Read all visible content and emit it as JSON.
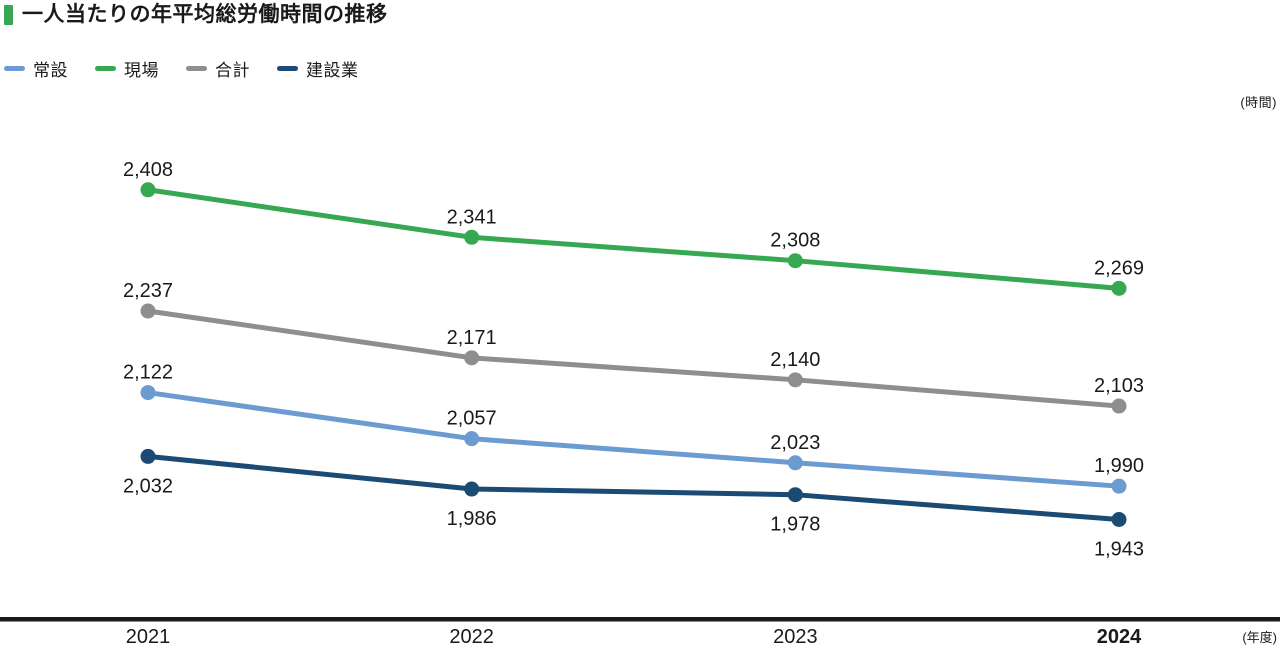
{
  "title": "一人当たりの年平均総労働時間の推移",
  "unit_label": "(時間)",
  "x_axis_unit_label": "(年度)",
  "colors": {
    "accent": "#36a852",
    "axis": "#1a1a1a",
    "text": "#1a1a1a"
  },
  "chart_data": {
    "type": "line",
    "title": "一人当たりの年平均総労働時間の推移",
    "x": [
      "2021",
      "2022",
      "2023",
      "2024"
    ],
    "xlabel": "(年度)",
    "ylabel": "(時間)",
    "ylim": [
      1900,
      2450
    ],
    "grid": false,
    "legend_position": "top-left",
    "value_format": "thousands-comma",
    "emphasized_x_label": "2024",
    "series": [
      {
        "name": "常設",
        "color": "#6c9bd2",
        "values": [
          2122,
          2057,
          2023,
          1990
        ],
        "label_position": "above"
      },
      {
        "name": "現場",
        "color": "#36a852",
        "values": [
          2408,
          2341,
          2308,
          2269
        ],
        "label_position": "above"
      },
      {
        "name": "合計",
        "color": "#8e8e8e",
        "values": [
          2237,
          2171,
          2140,
          2103
        ],
        "label_position": "above"
      },
      {
        "name": "建設業",
        "color": "#1b4a73",
        "values": [
          2032,
          1986,
          1978,
          1943
        ],
        "label_position": "below"
      }
    ]
  }
}
